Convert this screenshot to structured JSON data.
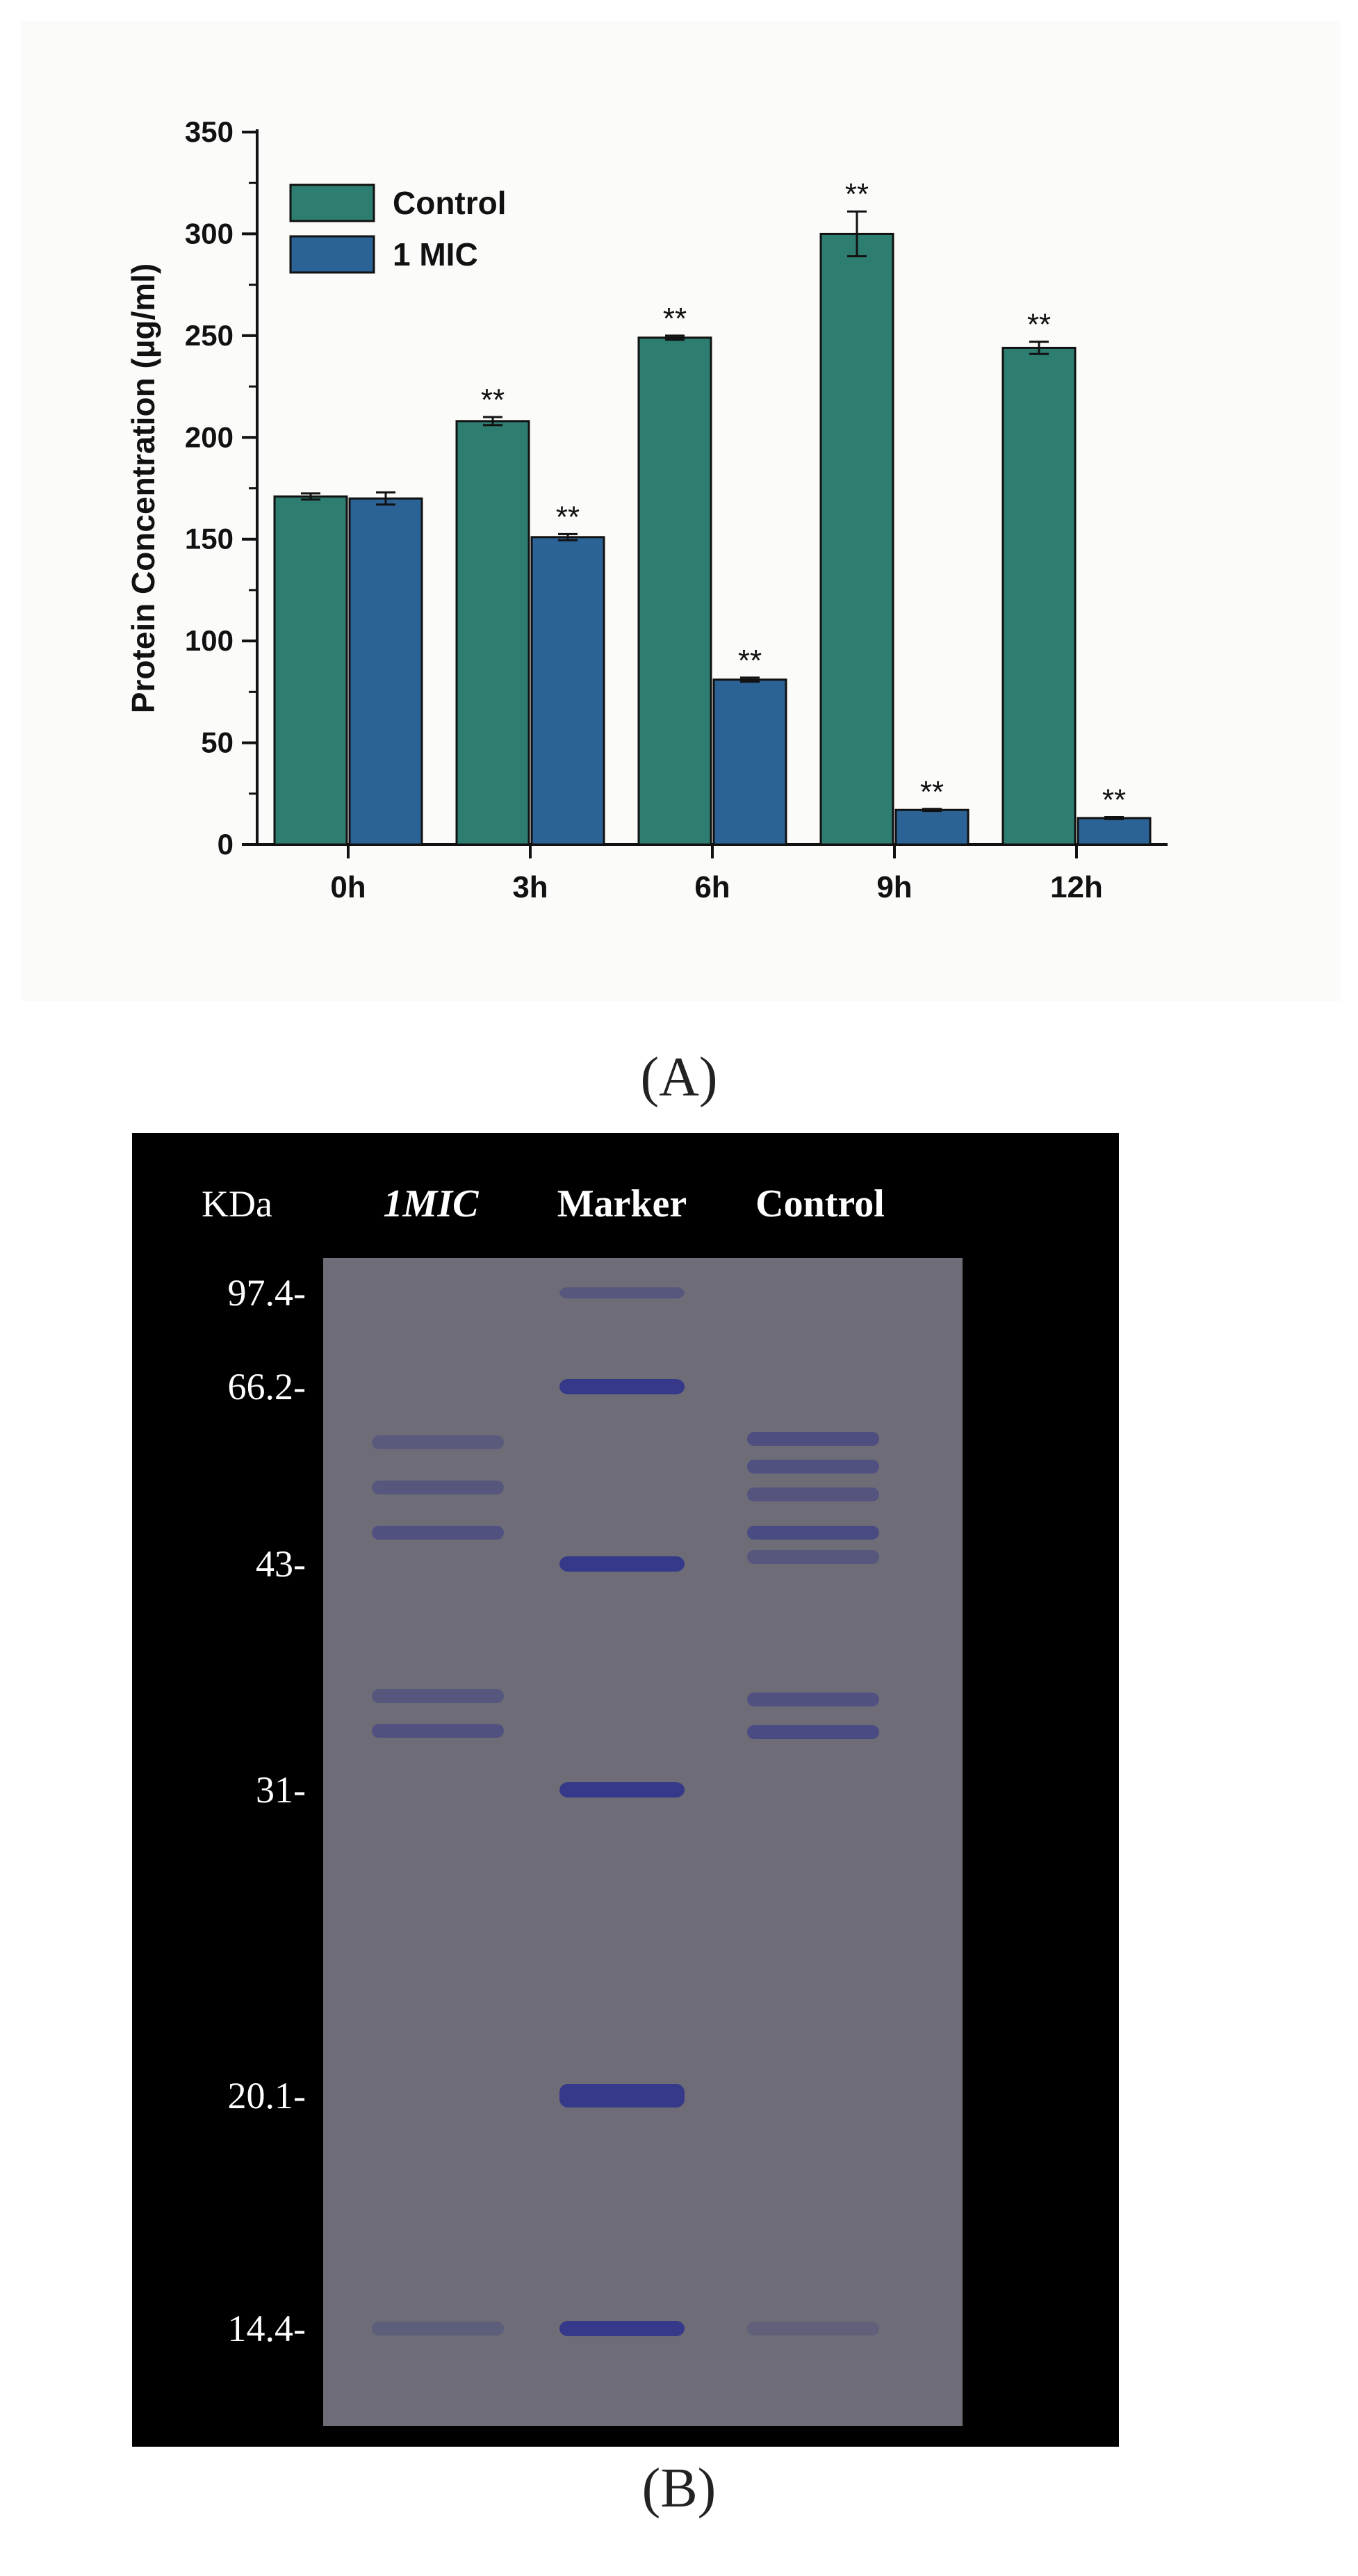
{
  "chart_data": {
    "type": "bar",
    "title": "",
    "xlabel": "",
    "ylabel": "Protein Concentration (µg/ml)",
    "ylim": [
      0,
      350
    ],
    "yticks": [
      "0",
      "50",
      "100",
      "150",
      "200",
      "250",
      "300",
      "350"
    ],
    "categories": [
      "0h",
      "3h",
      "6h",
      "9h",
      "12h"
    ],
    "legend_position": "top-left",
    "grid": false,
    "series": [
      {
        "name": "Control",
        "color": "#2e7d71",
        "values": [
          171,
          208,
          249,
          300,
          244
        ],
        "errors": [
          1.5,
          2,
          1,
          11,
          3
        ],
        "annotations": [
          "",
          "**",
          "**",
          "**",
          "**"
        ]
      },
      {
        "name": "1 MIC",
        "color": "#2b6396",
        "values": [
          170,
          151,
          81,
          17,
          13
        ],
        "errors": [
          3,
          1.5,
          1,
          0.5,
          0.5
        ],
        "annotations": [
          "",
          "**",
          "**",
          "**",
          "**"
        ]
      }
    ]
  },
  "captions": {
    "a": "(A)",
    "b": "(B)"
  },
  "gel": {
    "kda_label": "KDa",
    "lanes": [
      "1MIC",
      "Marker",
      "Control"
    ],
    "markers": [
      "97.4-",
      "66.2-",
      "43-",
      "31-",
      "20.1-",
      "14.4-"
    ],
    "background_color": "#000000",
    "membrane_color": "#6e6d77",
    "band_color": "#2d2f8c"
  }
}
